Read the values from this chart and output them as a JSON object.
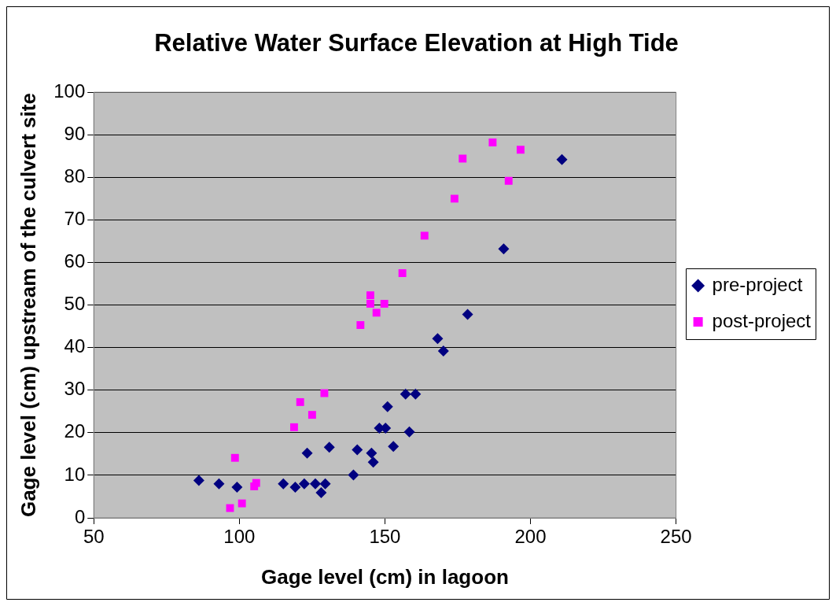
{
  "chart_data": {
    "type": "scatter",
    "title": "Relative Water Surface Elevation at High Tide",
    "xlabel": "Gage level (cm) in lagoon",
    "ylabel": "Gage level (cm) upstream of the culvert site",
    "xlim": [
      50,
      250
    ],
    "xticks": [
      50,
      100,
      150,
      200,
      250
    ],
    "ylim": [
      0,
      100
    ],
    "yticks": [
      0,
      10,
      20,
      30,
      40,
      50,
      60,
      70,
      80,
      90,
      100
    ],
    "grid": "y",
    "legend": "right",
    "series": [
      {
        "name": "pre-project",
        "color": "#000080",
        "marker": "diamond",
        "x": [
          86.1,
          93.0,
          99.2,
          115.1,
          119.2,
          122.3,
          123.3,
          126.1,
          128.1,
          129.5,
          130.9,
          139.2,
          140.5,
          145.4,
          146.0,
          148.1,
          150.2,
          150.9,
          152.9,
          157.1,
          160.5,
          158.4,
          168.1,
          170.1,
          178.4,
          190.8,
          210.8
        ],
        "values": [
          8.8,
          8.0,
          7.2,
          8.0,
          7.2,
          8.0,
          15.2,
          8.0,
          5.9,
          8.0,
          16.6,
          10.1,
          16.0,
          15.2,
          13.1,
          21.1,
          21.1,
          26.1,
          16.8,
          29.1,
          29.1,
          20.2,
          42.1,
          39.2,
          47.8,
          63.2,
          84.2
        ]
      },
      {
        "name": "post-project",
        "color": "#ff00ff",
        "marker": "square",
        "x": [
          96.8,
          100.9,
          105.1,
          105.8,
          98.5,
          118.8,
          120.9,
          125.0,
          129.2,
          141.6,
          145.0,
          145.0,
          149.8,
          147.1,
          156.0,
          163.6,
          173.9,
          176.7,
          187.0,
          196.6,
          192.5
        ],
        "values": [
          2.3,
          3.4,
          7.4,
          8.2,
          14.1,
          21.3,
          27.2,
          24.2,
          29.3,
          45.3,
          52.3,
          50.3,
          50.3,
          48.2,
          57.5,
          66.3,
          75.0,
          84.4,
          88.2,
          86.5,
          79.2
        ]
      }
    ]
  }
}
